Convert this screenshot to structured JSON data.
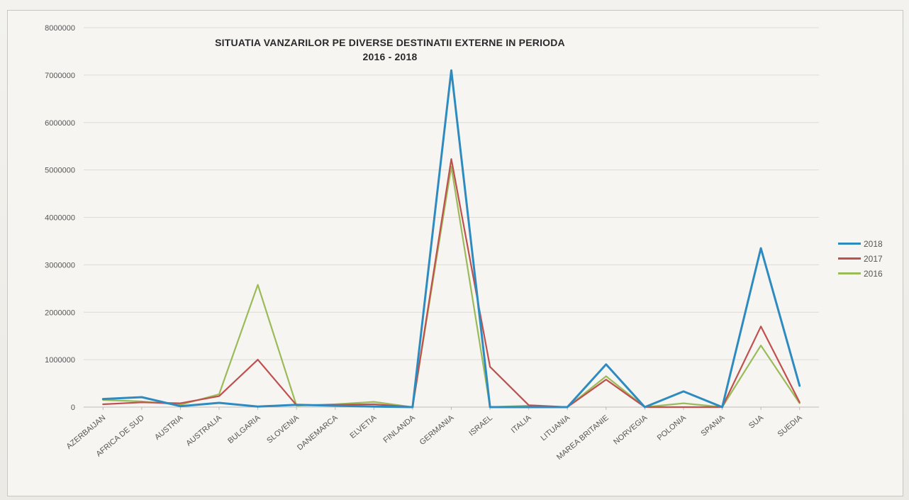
{
  "chart_data": {
    "type": "line",
    "title": "SITUATIA VANZARILOR PE DIVERSE DESTINATII EXTERNE IN PERIODA",
    "subtitle": "2016 - 2018",
    "xlabel": "",
    "ylabel": "",
    "ylim": [
      0,
      8000000
    ],
    "y_ticks": [
      "0",
      "1000000",
      "2000000",
      "3000000",
      "4000000",
      "5000000",
      "6000000",
      "7000000",
      "8000000"
    ],
    "grid": "horizontal",
    "legend_position": "right",
    "categories": [
      "AZERBAIJAN",
      "AFRICA DE SUD",
      "AUSTRIA",
      "AUSTRALIA",
      "BULGARIA",
      "SLOVENIA",
      "DANEMARCA",
      "ELVETIA",
      "FINLANDA",
      "GERMANIA",
      "ISRAEL",
      "ITALIA",
      "LITUANIA",
      "MAREA BRITANIE",
      "NORVEGIA",
      "POLONIA",
      "SPANIA",
      "SUA",
      "SUEDIA"
    ],
    "series": [
      {
        "name": "2018",
        "color": "#2e8bc0",
        "values": [
          170000,
          210000,
          20000,
          90000,
          10000,
          50000,
          30000,
          10000,
          0,
          7100000,
          0,
          0,
          0,
          900000,
          0,
          330000,
          0,
          3350000,
          450000
        ]
      },
      {
        "name": "2017",
        "color": "#c0504d",
        "values": [
          60000,
          100000,
          80000,
          230000,
          1000000,
          40000,
          50000,
          60000,
          0,
          5230000,
          850000,
          40000,
          0,
          580000,
          0,
          0,
          0,
          1700000,
          100000
        ]
      },
      {
        "name": "2016",
        "color": "#9bbb59",
        "values": [
          150000,
          120000,
          50000,
          270000,
          2580000,
          30000,
          60000,
          110000,
          0,
          5070000,
          0,
          30000,
          0,
          650000,
          0,
          80000,
          0,
          1300000,
          80000
        ]
      }
    ]
  }
}
